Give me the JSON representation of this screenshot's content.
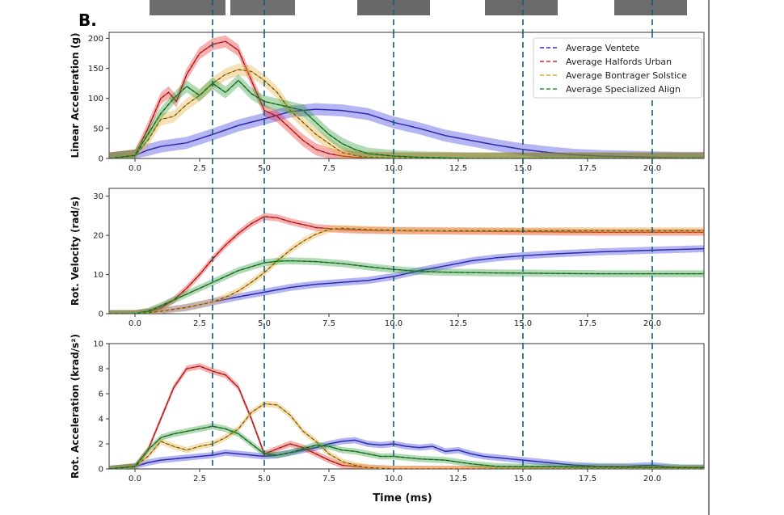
{
  "figure": {
    "panel_letter": "B.",
    "x_axis_label": "Time (ms)"
  },
  "chart_data": [
    {
      "type": "line",
      "ylabel": "Linear Acceleration (g)",
      "xlim": [
        -1,
        22
      ],
      "ylim": [
        0,
        210
      ],
      "xticks": [
        "0.0",
        "2.5",
        "5.0",
        "7.5",
        "10.0",
        "12.5",
        "15.0",
        "17.5",
        "20.0"
      ],
      "yticks": [
        "0",
        "50",
        "100",
        "150",
        "200"
      ],
      "legend": "top-right",
      "grid": false,
      "vlines": [
        3.0,
        5.0,
        10.0,
        15.0,
        20.0
      ],
      "series": [
        {
          "name": "Average Ventete",
          "color": "#2a2adf",
          "x": [
            -1,
            0,
            0.5,
            1,
            2,
            3,
            4,
            5,
            6,
            7,
            8,
            9,
            10,
            11,
            12,
            13,
            14,
            15,
            16,
            17,
            18,
            19,
            20,
            21,
            22
          ],
          "y": [
            0,
            5,
            14,
            20,
            26,
            40,
            55,
            66,
            78,
            82,
            80,
            74,
            60,
            50,
            38,
            30,
            22,
            15,
            10,
            6,
            4,
            3,
            2,
            1,
            1
          ]
        },
        {
          "name": "Average Halfords Urban",
          "color": "#e82020",
          "x": [
            -1,
            0,
            0.5,
            1,
            1.3,
            1.6,
            2,
            2.5,
            3,
            3.5,
            4,
            4.5,
            5,
            5.5,
            6,
            6.5,
            7,
            7.5,
            8,
            8.5,
            9,
            10,
            11,
            22
          ],
          "y": [
            0,
            5,
            50,
            100,
            110,
            95,
            140,
            175,
            190,
            195,
            180,
            130,
            80,
            70,
            50,
            30,
            15,
            8,
            4,
            2,
            1,
            0,
            0,
            0
          ]
        },
        {
          "name": "Average Bontrager Solstice",
          "color": "#e0a830",
          "x": [
            -1,
            0,
            0.5,
            1,
            1.5,
            2,
            2.5,
            3,
            3.5,
            4,
            4.5,
            5,
            5.5,
            6,
            6.5,
            7,
            7.5,
            8,
            8.5,
            9,
            10,
            11,
            22
          ],
          "y": [
            0,
            5,
            30,
            65,
            70,
            90,
            105,
            125,
            140,
            148,
            145,
            130,
            110,
            80,
            60,
            40,
            25,
            10,
            5,
            2,
            1,
            0,
            0
          ]
        },
        {
          "name": "Average Specialized Align",
          "color": "#22962e",
          "x": [
            -1,
            0,
            0.5,
            1,
            1.5,
            2,
            2.5,
            3,
            3.5,
            4,
            4.5,
            5,
            5.5,
            6,
            6.5,
            7,
            7.5,
            8,
            8.5,
            9,
            10,
            11,
            12,
            13,
            22
          ],
          "y": [
            0,
            5,
            40,
            75,
            100,
            120,
            105,
            125,
            110,
            130,
            108,
            95,
            90,
            85,
            80,
            60,
            40,
            25,
            15,
            8,
            4,
            2,
            1,
            0,
            0
          ]
        }
      ]
    },
    {
      "type": "line",
      "ylabel": "Rot. Velocity (rad/s)",
      "xlim": [
        -1,
        22
      ],
      "ylim": [
        0,
        32
      ],
      "xticks": [
        "0.0",
        "2.5",
        "5.0",
        "7.5",
        "10.0",
        "12.5",
        "15.0",
        "17.5",
        "20.0"
      ],
      "yticks": [
        "0",
        "10",
        "20",
        "30"
      ],
      "grid": false,
      "vlines": [
        3.0,
        5.0,
        10.0,
        15.0,
        20.0
      ],
      "series": [
        {
          "name": "Average Ventete",
          "color": "#2a2adf",
          "x": [
            -1,
            0,
            1,
            2,
            3,
            4,
            5,
            6,
            7,
            8,
            9,
            10,
            11,
            12,
            13,
            14,
            15,
            16,
            17,
            18,
            19,
            20,
            21,
            22
          ],
          "y": [
            0,
            0,
            0.6,
            1.6,
            3,
            4.3,
            5.5,
            6.7,
            7.5,
            8,
            8.5,
            9.5,
            11,
            12.2,
            13.5,
            14.3,
            14.8,
            15.2,
            15.5,
            15.8,
            16,
            16.2,
            16.4,
            16.6
          ]
        },
        {
          "name": "Average Halfords Urban",
          "color": "#e82020",
          "x": [
            -1,
            0,
            0.5,
            1,
            1.5,
            2,
            2.5,
            3,
            3.5,
            4,
            4.5,
            5,
            5.5,
            6,
            7,
            8,
            9,
            10,
            12,
            14,
            16,
            18,
            20,
            22
          ],
          "y": [
            0,
            0,
            0.4,
            1.5,
            3.5,
            6.5,
            10,
            14,
            17.5,
            20.5,
            23,
            24.8,
            24.5,
            23.5,
            22,
            21.5,
            21.3,
            21.2,
            21.1,
            21,
            20.9,
            20.8,
            20.8,
            20.8
          ]
        },
        {
          "name": "Average Bontrager Solstice",
          "color": "#e0a830",
          "x": [
            -1,
            0,
            0.5,
            1,
            2,
            3,
            3.5,
            4,
            4.5,
            5,
            5.5,
            6,
            6.5,
            7,
            7.5,
            8,
            9,
            10,
            12,
            14,
            16,
            18,
            20,
            22
          ],
          "y": [
            0,
            0,
            0.2,
            0.6,
            1.6,
            3,
            4.2,
            5.8,
            8,
            10.5,
            13.5,
            16.2,
            18.5,
            20.3,
            21.5,
            21.8,
            21.5,
            21.3,
            21.2,
            21.2,
            21.2,
            21.2,
            21.2,
            21.2
          ]
        },
        {
          "name": "Average Specialized Align",
          "color": "#22962e",
          "x": [
            -1,
            0,
            0.5,
            1,
            1.5,
            2,
            2.5,
            3,
            3.5,
            4,
            4.5,
            5,
            5.5,
            6,
            7,
            8,
            9,
            10,
            11,
            12,
            14,
            16,
            18,
            20,
            22
          ],
          "y": [
            0,
            0,
            0.6,
            2,
            3.5,
            5,
            6.5,
            8,
            9.5,
            11,
            12,
            13,
            13.4,
            13.5,
            13.3,
            12.8,
            12,
            11.3,
            10.8,
            10.6,
            10.4,
            10.3,
            10.2,
            10.2,
            10.2
          ]
        }
      ]
    },
    {
      "type": "line",
      "ylabel": "Rot. Acceleration (krad/s²)",
      "xlim": [
        -1,
        22
      ],
      "ylim": [
        0,
        10
      ],
      "xticks": [
        "0.0",
        "2.5",
        "5.0",
        "7.5",
        "10.0",
        "12.5",
        "15.0",
        "17.5",
        "20.0"
      ],
      "yticks": [
        "0",
        "2",
        "4",
        "6",
        "8",
        "10"
      ],
      "grid": false,
      "vlines": [
        3.0,
        5.0,
        10.0,
        15.0,
        20.0
      ],
      "series": [
        {
          "name": "Average Ventete",
          "color": "#2a2adf",
          "x": [
            -1,
            0,
            0.5,
            1,
            1.5,
            2,
            2.5,
            3,
            3.5,
            4,
            5,
            5.5,
            6,
            6.5,
            7,
            7.5,
            8,
            8.5,
            9,
            9.5,
            10,
            10.5,
            11,
            11.5,
            12,
            12.5,
            13,
            13.5,
            14,
            15,
            16,
            17,
            18,
            19,
            20,
            21,
            22
          ],
          "y": [
            0,
            0.2,
            0.5,
            0.7,
            0.8,
            0.9,
            1.0,
            1.1,
            1.3,
            1.2,
            1.0,
            1.1,
            1.3,
            1.5,
            1.7,
            2.0,
            2.2,
            2.3,
            2.0,
            1.9,
            2.0,
            1.8,
            1.7,
            1.8,
            1.4,
            1.5,
            1.2,
            1.0,
            0.9,
            0.7,
            0.5,
            0.3,
            0.2,
            0.2,
            0.3,
            0.1,
            0.1
          ]
        },
        {
          "name": "Average Halfords Urban",
          "color": "#e82020",
          "x": [
            -1,
            0,
            0.5,
            1,
            1.5,
            2,
            2.5,
            3,
            3.5,
            4,
            4.5,
            5,
            5.5,
            6,
            6.5,
            7,
            7.5,
            8,
            9,
            10,
            22
          ],
          "y": [
            0,
            0.2,
            1.5,
            4,
            6.5,
            8,
            8.2,
            7.8,
            7.5,
            6.5,
            4,
            1.2,
            1.6,
            2,
            1.7,
            1.2,
            0.7,
            0.3,
            0.1,
            0,
            0
          ]
        },
        {
          "name": "Average Bontrager Solstice",
          "color": "#e0a830",
          "x": [
            -1,
            0,
            0.5,
            1,
            1.5,
            2,
            2.5,
            3,
            3.5,
            4,
            4.5,
            5,
            5.5,
            6,
            6.5,
            7,
            7.5,
            8,
            8.5,
            9,
            10,
            22
          ],
          "y": [
            0,
            0.2,
            1,
            2.2,
            1.8,
            1.5,
            1.8,
            2,
            2.5,
            3.2,
            4.5,
            5.2,
            5.1,
            4.3,
            3,
            2.2,
            1.2,
            0.6,
            0.3,
            0.1,
            0,
            0
          ]
        },
        {
          "name": "Average Specialized Align",
          "color": "#22962e",
          "x": [
            -1,
            0,
            0.5,
            1,
            1.5,
            2,
            2.5,
            3,
            3.5,
            4,
            4.5,
            5,
            5.5,
            6,
            6.5,
            7,
            7.5,
            8,
            8.5,
            9,
            9.5,
            10,
            11,
            12,
            13,
            14,
            22
          ],
          "y": [
            0,
            0.2,
            1.5,
            2.5,
            2.8,
            3,
            3.2,
            3.4,
            3.2,
            2.8,
            2,
            1.2,
            1.1,
            1.3,
            1.6,
            1.9,
            1.8,
            1.5,
            1.4,
            1.2,
            1.0,
            1.0,
            0.8,
            0.7,
            0.4,
            0.2,
            0.1
          ]
        }
      ]
    }
  ]
}
